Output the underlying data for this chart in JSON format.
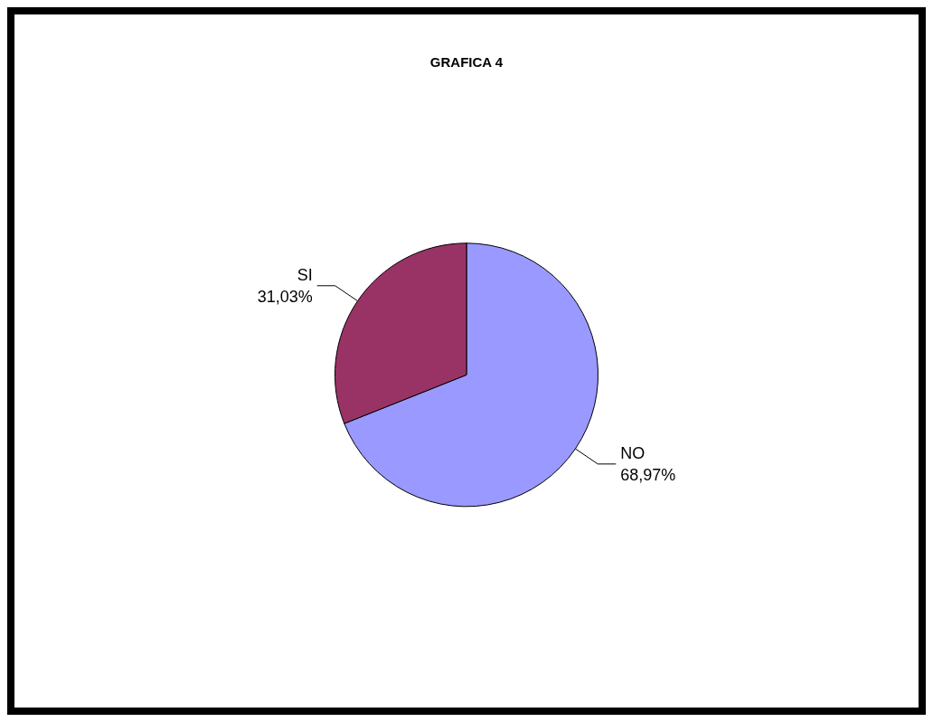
{
  "chart_data": {
    "type": "pie",
    "title": "GRAFICA 4",
    "categories": [
      "NO",
      "SI"
    ],
    "values": [
      68.97,
      31.03
    ],
    "value_labels": [
      "68,97%",
      "31,03%"
    ],
    "colors": [
      "#9999ff",
      "#993366"
    ],
    "legend": false
  }
}
